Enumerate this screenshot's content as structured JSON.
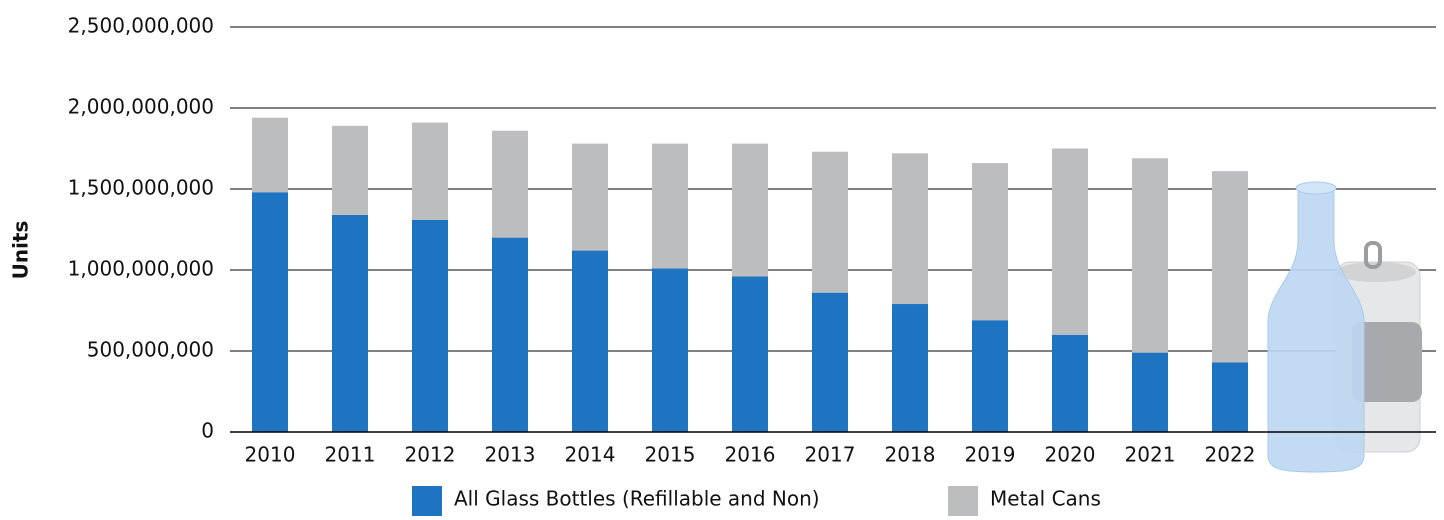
{
  "chart_data": {
    "type": "stacked_bar",
    "y_label": "Units",
    "categories": [
      "2010",
      "2011",
      "2012",
      "2013",
      "2014",
      "2015",
      "2016",
      "2017",
      "2018",
      "2019",
      "2020",
      "2021",
      "2022"
    ],
    "series": [
      {
        "name": "All Glass Bottles (Refillable and Non)",
        "color": "#1f74c1",
        "values": [
          1480000000,
          1340000000,
          1310000000,
          1200000000,
          1120000000,
          1010000000,
          960000000,
          860000000,
          790000000,
          690000000,
          600000000,
          490000000,
          430000000
        ]
      },
      {
        "name": "Metal Cans",
        "color": "#bcbdbf",
        "values": [
          460000000,
          550000000,
          600000000,
          660000000,
          660000000,
          770000000,
          820000000,
          870000000,
          930000000,
          970000000,
          1150000000,
          1200000000,
          1180000000
        ]
      }
    ],
    "ylim": [
      0,
      2500000000
    ],
    "yticks": [
      0,
      {
        "value": 500000000,
        "label": "500,000,000"
      },
      {
        "value": 1000000000,
        "label": "1,000,000,000"
      },
      {
        "value": 1500000000,
        "label": "1,500,000,000"
      },
      {
        "value": 2000000000,
        "label": "2,000,000,000"
      },
      {
        "value": 2500000000,
        "label": "2,500,000,000"
      }
    ],
    "grid": true
  }
}
